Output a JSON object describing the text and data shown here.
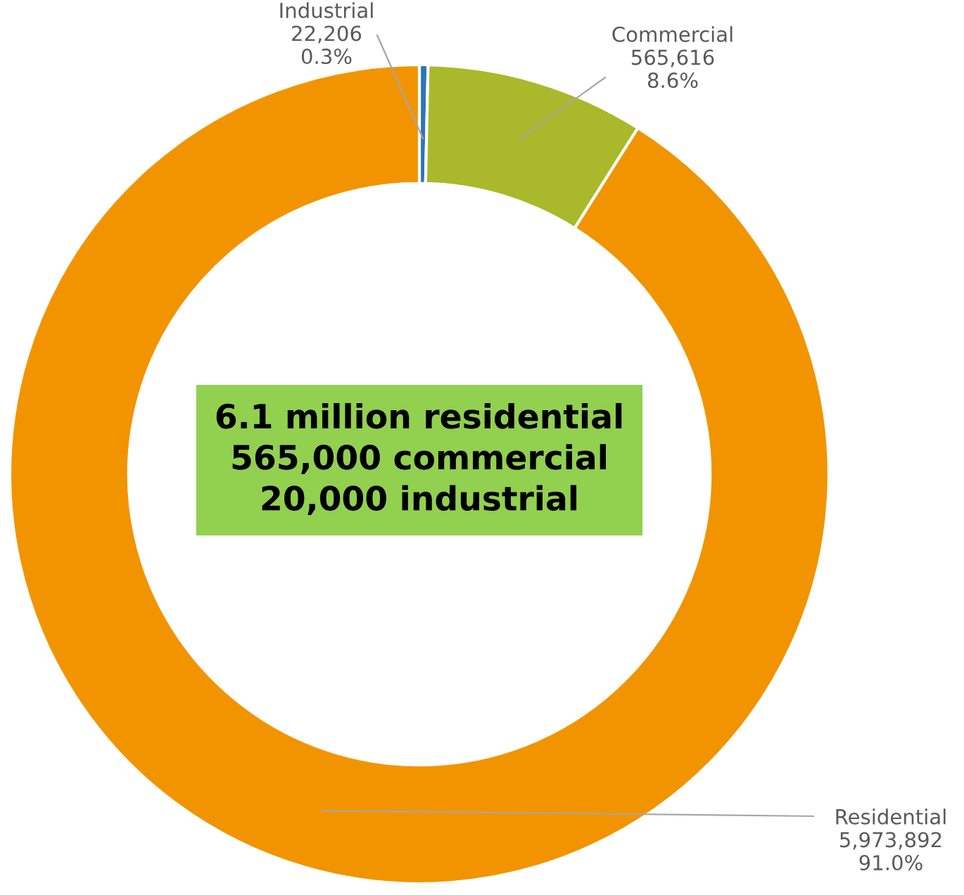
{
  "chart_data": {
    "type": "donut",
    "categories": [
      "Industrial",
      "Commercial",
      "Residential"
    ],
    "values": [
      22206,
      565616,
      5973892
    ],
    "value_labels": [
      "22,206\n0.3%",
      "565,616\n8.6%",
      "5,973,892\n91.0%"
    ],
    "colors": [
      "#2e75b6",
      "#a9b92b",
      "#f29400"
    ],
    "annotations": [
      "6.1 million residential\n565,000 commercial\n20,000 industrial"
    ],
    "legend": false
  }
}
